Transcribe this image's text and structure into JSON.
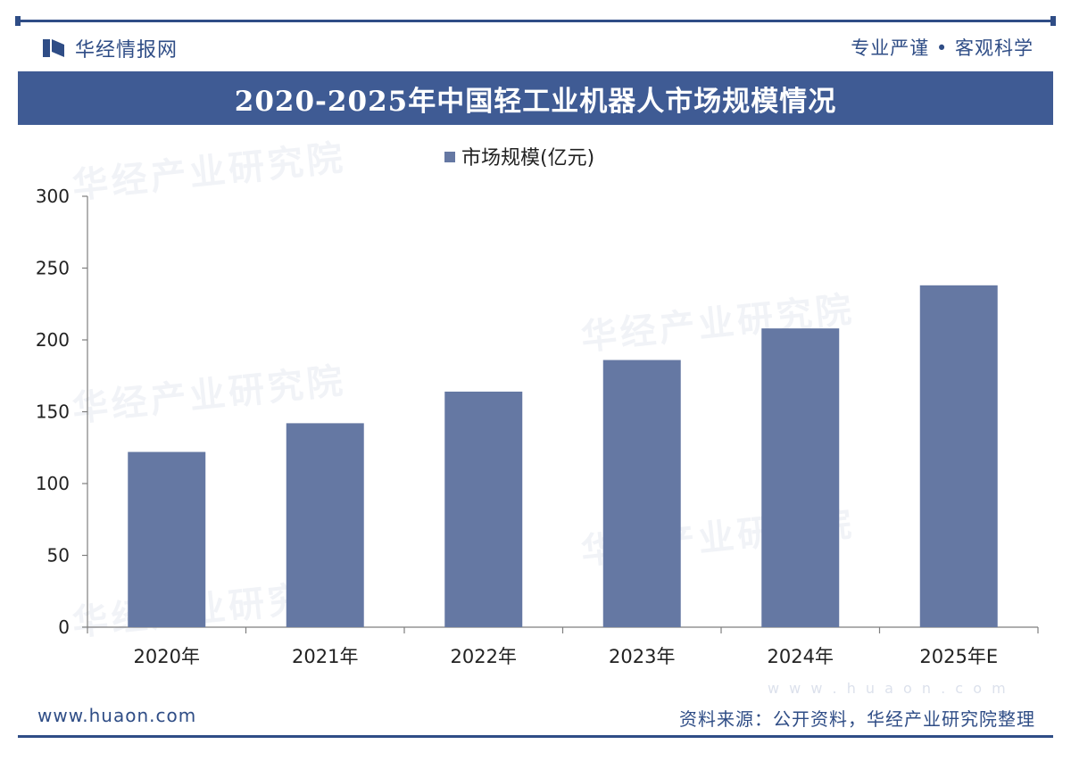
{
  "header": {
    "logo_text": "华经情报网",
    "tagline": "专业严谨 • 客观科学"
  },
  "title": "2020-2025年中国轻工业机器人市场规模情况",
  "watermark_text": "华经产业研究院",
  "footer": {
    "website": "www.huaon.com",
    "source": "资料来源：公开资料，华经产业研究院整理",
    "watermark_url": "w w w . h u a o n . c o m"
  },
  "colors": {
    "brand": "#2f4d86",
    "bar": "#6578a3",
    "title_bar": "#3f5b94",
    "axis": "#7f7f7f"
  },
  "chart_data": {
    "type": "bar",
    "title": "2020-2025年中国轻工业机器人市场规模情况",
    "categories": [
      "2020年",
      "2021年",
      "2022年",
      "2023年",
      "2024年",
      "2025年E"
    ],
    "series": [
      {
        "name": "市场规模(亿元)",
        "values": [
          122,
          142,
          164,
          186,
          208,
          238
        ]
      }
    ],
    "yticks": [
      0,
      50,
      100,
      150,
      200,
      250,
      300
    ],
    "ylim": [
      0,
      300
    ],
    "xlabel": "",
    "ylabel": "",
    "legend": "top-center",
    "grid": false
  }
}
